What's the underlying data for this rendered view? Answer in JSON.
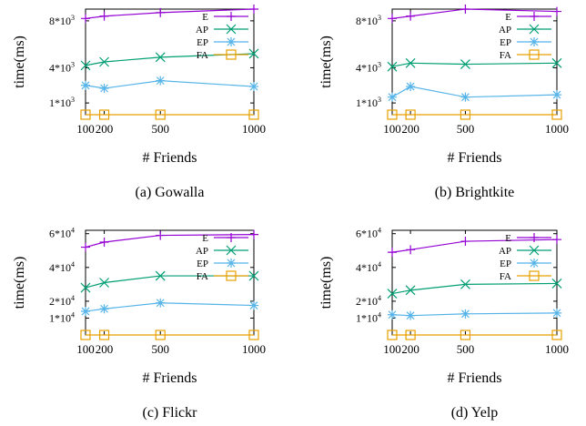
{
  "colors": {
    "E": "#9400d3",
    "AP": "#009e73",
    "EP": "#56b4e9",
    "FA": "#e69f00"
  },
  "chart_data": [
    {
      "type": "line",
      "caption": "(a) Gowalla",
      "xlabel": "# Friends",
      "ylabel": "time(ms)",
      "x": [
        100,
        200,
        500,
        1000
      ],
      "xlim": [
        100,
        1000
      ],
      "ylim": [
        0,
        9000
      ],
      "yticks": [
        {
          "value": 1000,
          "label": "1*10"
        },
        {
          "value": 4000,
          "label": "4*10"
        },
        {
          "value": 8000,
          "label": "8*10"
        }
      ],
      "ytick_exponent": "3",
      "legend_position": "top-right",
      "series": [
        {
          "name": "E",
          "marker": "plus",
          "values": [
            8200,
            8400,
            8700,
            9000
          ]
        },
        {
          "name": "AP",
          "marker": "x",
          "values": [
            4200,
            4500,
            4900,
            5200
          ]
        },
        {
          "name": "EP",
          "marker": "star",
          "values": [
            2500,
            2250,
            2900,
            2400
          ]
        },
        {
          "name": "FA",
          "marker": "square",
          "values": [
            0,
            0,
            0,
            0
          ]
        }
      ]
    },
    {
      "type": "line",
      "caption": "(b) Brightkite",
      "xlabel": "# Friends",
      "ylabel": "time(ms)",
      "x": [
        100,
        200,
        500,
        1000
      ],
      "xlim": [
        100,
        1000
      ],
      "ylim": [
        0,
        9000
      ],
      "yticks": [
        {
          "value": 1000,
          "label": "1*10"
        },
        {
          "value": 4000,
          "label": "4*10"
        },
        {
          "value": 8000,
          "label": "8*10"
        }
      ],
      "ytick_exponent": "3",
      "legend_position": "top-right",
      "series": [
        {
          "name": "E",
          "marker": "plus",
          "values": [
            8200,
            8400,
            9000,
            8800
          ]
        },
        {
          "name": "AP",
          "marker": "x",
          "values": [
            4100,
            4400,
            4300,
            4400
          ]
        },
        {
          "name": "EP",
          "marker": "star",
          "values": [
            1500,
            2400,
            1500,
            1700
          ]
        },
        {
          "name": "FA",
          "marker": "square",
          "values": [
            0,
            0,
            0,
            0
          ]
        }
      ]
    },
    {
      "type": "line",
      "caption": "(c) Flickr",
      "xlabel": "# Friends",
      "ylabel": "time(ms)",
      "x": [
        100,
        200,
        500,
        1000
      ],
      "xlim": [
        100,
        1000
      ],
      "ylim": [
        0,
        62000
      ],
      "yticks": [
        {
          "value": 10000,
          "label": "1*10"
        },
        {
          "value": 20000,
          "label": "2*10"
        },
        {
          "value": 40000,
          "label": "4*10"
        },
        {
          "value": 60000,
          "label": "6*10"
        }
      ],
      "ytick_exponent": "4",
      "legend_position": "top-right",
      "series": [
        {
          "name": "E",
          "marker": "plus",
          "values": [
            52000,
            55000,
            59000,
            59500
          ]
        },
        {
          "name": "AP",
          "marker": "x",
          "values": [
            28000,
            31000,
            35000,
            35000
          ]
        },
        {
          "name": "EP",
          "marker": "star",
          "values": [
            14000,
            15500,
            19000,
            17500
          ]
        },
        {
          "name": "FA",
          "marker": "square",
          "values": [
            0,
            0,
            0,
            0
          ]
        }
      ]
    },
    {
      "type": "line",
      "caption": "(d) Yelp",
      "xlabel": "# Friends",
      "ylabel": "time(ms)",
      "x": [
        100,
        200,
        500,
        1000
      ],
      "xlim": [
        100,
        1000
      ],
      "ylim": [
        0,
        62000
      ],
      "yticks": [
        {
          "value": 10000,
          "label": "1*10"
        },
        {
          "value": 20000,
          "label": "2*10"
        },
        {
          "value": 40000,
          "label": "4*10"
        },
        {
          "value": 60000,
          "label": "6*10"
        }
      ],
      "ytick_exponent": "4",
      "legend_position": "top-right",
      "series": [
        {
          "name": "E",
          "marker": "plus",
          "values": [
            49000,
            50500,
            55500,
            56500
          ]
        },
        {
          "name": "AP",
          "marker": "x",
          "values": [
            24500,
            26500,
            30000,
            30500
          ]
        },
        {
          "name": "EP",
          "marker": "star",
          "values": [
            12000,
            11500,
            12500,
            13000
          ]
        },
        {
          "name": "FA",
          "marker": "square",
          "values": [
            0,
            0,
            0,
            0
          ]
        }
      ]
    }
  ]
}
